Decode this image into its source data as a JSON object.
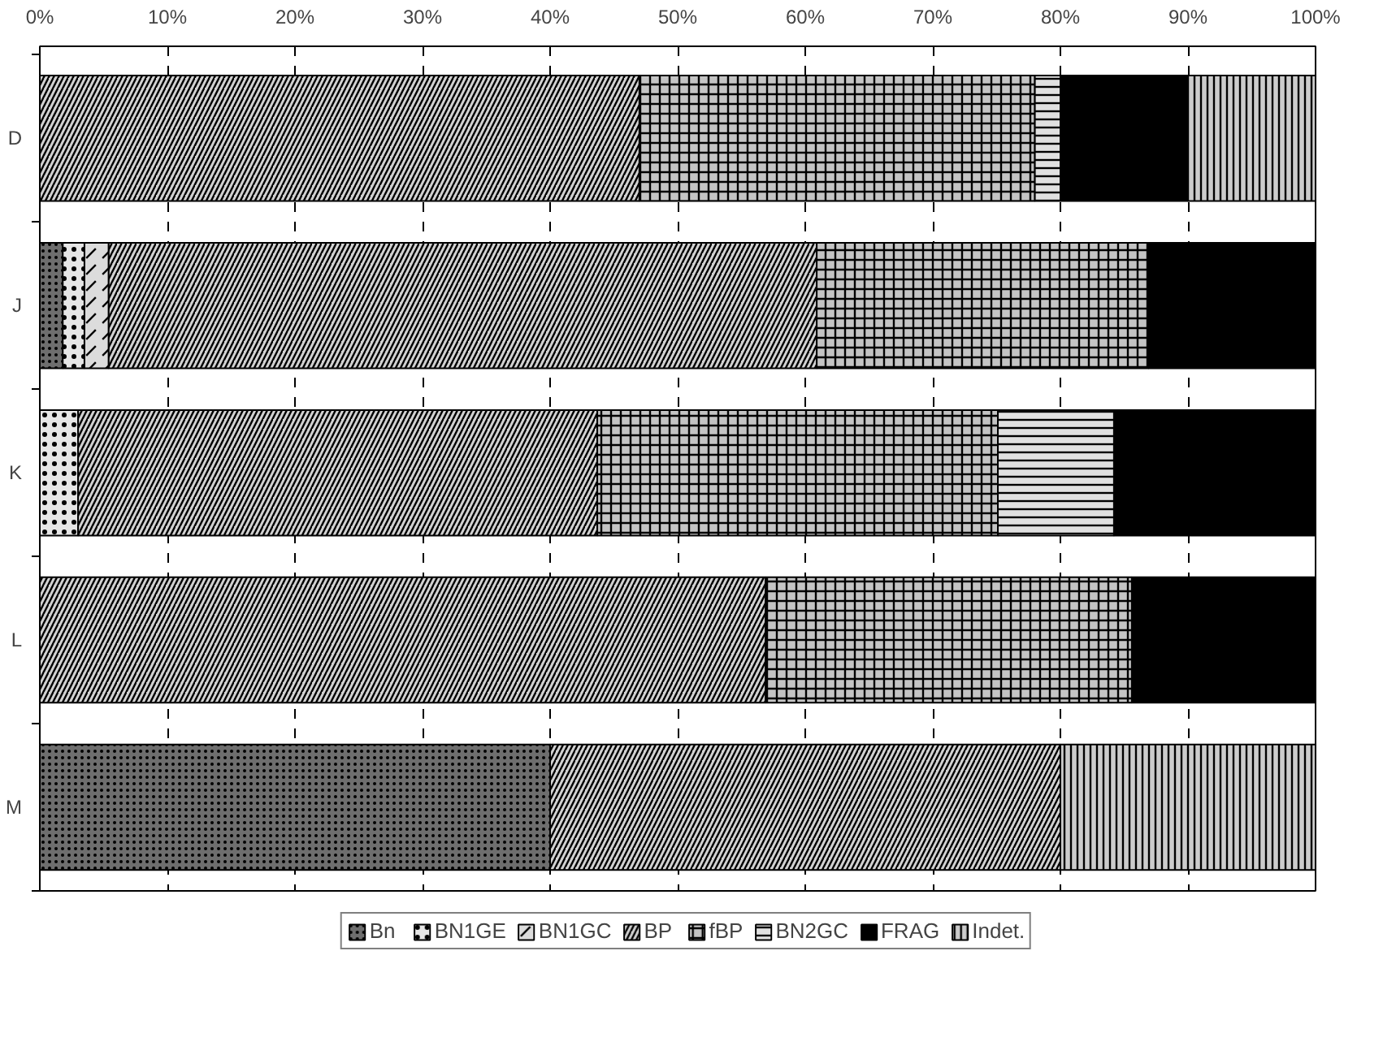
{
  "chart_data": {
    "type": "bar",
    "orientation": "horizontal",
    "stacked": true,
    "categories": [
      "D",
      "J",
      "K",
      "L",
      "M"
    ],
    "series": [
      {
        "name": "Bn",
        "color": "#6e6e6e",
        "values": [
          0,
          1.8,
          0,
          0,
          40
        ]
      },
      {
        "name": "BN1GE",
        "color": "#e6e6e6",
        "values": [
          0,
          1.7,
          3,
          0,
          0
        ]
      },
      {
        "name": "BN1GC",
        "color": "#dcdcdc",
        "values": [
          0,
          1.9,
          0,
          0,
          0
        ]
      },
      {
        "name": "BP",
        "color": "#d2d2d2",
        "values": [
          47,
          55.5,
          40.7,
          56.9,
          40
        ]
      },
      {
        "name": "fBP",
        "color": "#c4c4c4",
        "values": [
          31,
          26,
          31.4,
          28.7,
          0
        ]
      },
      {
        "name": "BN2GC",
        "color": "#e0e0e0",
        "values": [
          2,
          0,
          9.1,
          0,
          0
        ]
      },
      {
        "name": "FRAG",
        "color": "#000000",
        "values": [
          10,
          13.1,
          15.8,
          14.4,
          0
        ]
      },
      {
        "name": "Indet.",
        "color": "#cccccc",
        "values": [
          10,
          0,
          0,
          0,
          20
        ]
      }
    ],
    "xlim": [
      0,
      100
    ],
    "xticks": [
      {
        "value": 0,
        "label": "0%"
      },
      {
        "value": 10,
        "label": "10%"
      },
      {
        "value": 20,
        "label": "20%"
      },
      {
        "value": 30,
        "label": "30%"
      },
      {
        "value": 40,
        "label": "40%"
      },
      {
        "value": 50,
        "label": "50%"
      },
      {
        "value": 60,
        "label": "60%"
      },
      {
        "value": 70,
        "label": "70%"
      },
      {
        "value": 80,
        "label": "80%"
      },
      {
        "value": 90,
        "label": "90%"
      },
      {
        "value": 100,
        "label": "100%"
      }
    ],
    "grid": "x",
    "legend": "bottom"
  }
}
